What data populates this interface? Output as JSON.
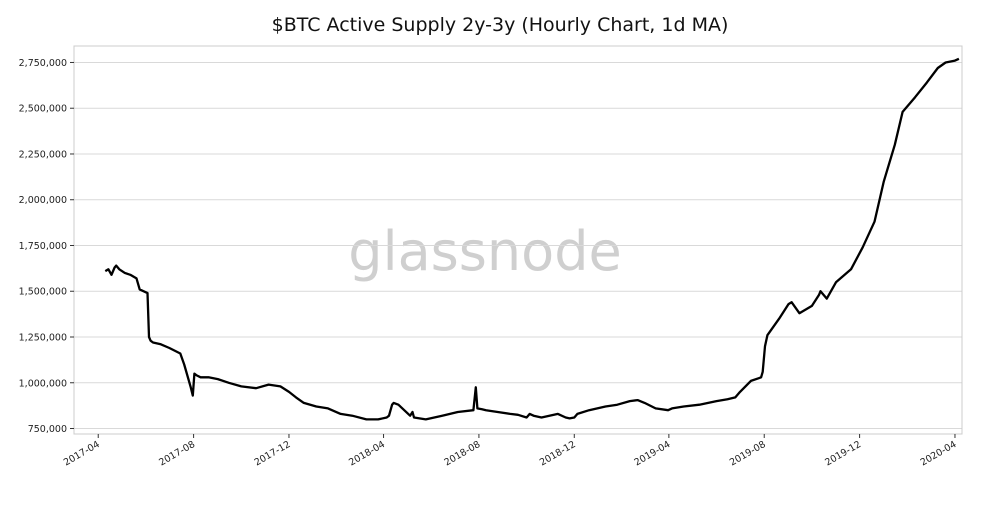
{
  "chart_data": {
    "type": "line",
    "title": "$BTC Active Supply 2y-3y (Hourly Chart, 1d MA)",
    "xlabel": "",
    "ylabel": "",
    "watermark": "glassnode",
    "line_color": "#000000",
    "grid_color": "#d9d9d9",
    "grid": true,
    "xlim": [
      "2017-03-01",
      "2020-04-10"
    ],
    "ylim": [
      720000,
      2840000
    ],
    "yticks": [
      750000,
      1000000,
      1250000,
      1500000,
      1750000,
      2000000,
      2250000,
      2500000,
      2750000
    ],
    "ytick_labels": [
      "750,000",
      "1,000,000",
      "1,250,000",
      "1,500,000",
      "1,750,000",
      "2,000,000",
      "2,250,000",
      "2,500,000",
      "2,750,000"
    ],
    "xticks": [
      "2017-04",
      "2017-08",
      "2017-12",
      "2018-04",
      "2018-08",
      "2018-12",
      "2019-04",
      "2019-08",
      "2019-12",
      "2020-04"
    ],
    "series": [
      {
        "name": "",
        "x": [
          "2017-04-10",
          "2017-04-14",
          "2017-04-18",
          "2017-04-22",
          "2017-04-24",
          "2017-04-28",
          "2017-05-05",
          "2017-05-12",
          "2017-05-20",
          "2017-05-24",
          "2017-06-03",
          "2017-06-05",
          "2017-06-07",
          "2017-06-10",
          "2017-06-20",
          "2017-07-01",
          "2017-07-15",
          "2017-07-20",
          "2017-07-28",
          "2017-07-31",
          "2017-08-02",
          "2017-08-05",
          "2017-08-10",
          "2017-08-20",
          "2017-09-01",
          "2017-09-15",
          "2017-10-01",
          "2017-10-20",
          "2017-11-05",
          "2017-11-20",
          "2017-12-01",
          "2017-12-10",
          "2017-12-20",
          "2018-01-05",
          "2018-01-20",
          "2018-02-05",
          "2018-02-20",
          "2018-03-10",
          "2018-03-25",
          "2018-04-05",
          "2018-04-08",
          "2018-04-12",
          "2018-04-14",
          "2018-04-20",
          "2018-05-05",
          "2018-05-08",
          "2018-05-10",
          "2018-05-25",
          "2018-06-15",
          "2018-07-05",
          "2018-07-25",
          "2018-07-28",
          "2018-07-30",
          "2018-08-05",
          "2018-08-10",
          "2018-08-25",
          "2018-09-10",
          "2018-09-20",
          "2018-10-01",
          "2018-10-05",
          "2018-10-10",
          "2018-10-20",
          "2018-11-10",
          "2018-11-20",
          "2018-11-25",
          "2018-12-01",
          "2018-12-05",
          "2018-12-20",
          "2019-01-10",
          "2019-01-25",
          "2019-02-10",
          "2019-02-20",
          "2019-03-01",
          "2019-03-15",
          "2019-03-31",
          "2019-04-05",
          "2019-04-20",
          "2019-05-10",
          "2019-06-01",
          "2019-06-15",
          "2019-06-25",
          "2019-07-01",
          "2019-07-15",
          "2019-07-25",
          "2019-07-28",
          "2019-07-30",
          "2019-08-02",
          "2019-08-05",
          "2019-08-20",
          "2019-09-01",
          "2019-09-05",
          "2019-09-15",
          "2019-10-01",
          "2019-10-10",
          "2019-10-12",
          "2019-10-20",
          "2019-11-01",
          "2019-11-20",
          "2019-12-05",
          "2019-12-20",
          "2020-01-01",
          "2020-01-15",
          "2020-01-25",
          "2020-02-10",
          "2020-02-25",
          "2020-03-10",
          "2020-03-20",
          "2020-04-01",
          "2020-04-06"
        ],
        "values": [
          1610000,
          1620000,
          1590000,
          1630000,
          1640000,
          1620000,
          1600000,
          1590000,
          1570000,
          1510000,
          1490000,
          1250000,
          1230000,
          1220000,
          1210000,
          1190000,
          1160000,
          1100000,
          980000,
          930000,
          1050000,
          1040000,
          1030000,
          1030000,
          1020000,
          1000000,
          980000,
          970000,
          990000,
          980000,
          950000,
          920000,
          890000,
          870000,
          860000,
          830000,
          820000,
          800000,
          800000,
          810000,
          820000,
          880000,
          890000,
          880000,
          820000,
          840000,
          810000,
          800000,
          820000,
          840000,
          850000,
          975000,
          860000,
          855000,
          850000,
          840000,
          830000,
          825000,
          810000,
          830000,
          820000,
          810000,
          830000,
          810000,
          805000,
          810000,
          830000,
          850000,
          870000,
          880000,
          900000,
          905000,
          890000,
          860000,
          850000,
          860000,
          870000,
          880000,
          900000,
          910000,
          920000,
          950000,
          1010000,
          1025000,
          1030000,
          1060000,
          1200000,
          1260000,
          1350000,
          1430000,
          1440000,
          1380000,
          1420000,
          1480000,
          1500000,
          1460000,
          1550000,
          1620000,
          1740000,
          1880000,
          2100000,
          2300000,
          2480000,
          2560000,
          2640000,
          2720000,
          2750000,
          2760000,
          2770000
        ]
      }
    ]
  }
}
